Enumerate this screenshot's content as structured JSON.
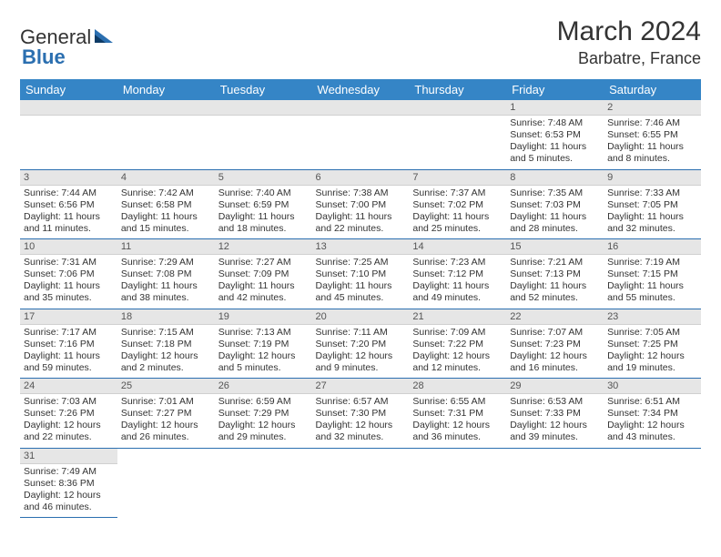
{
  "logo": {
    "part1": "General",
    "part2": "Blue"
  },
  "title": "March 2024",
  "location": "Barbatre, France",
  "colors": {
    "header_bg": "#3585c6",
    "header_text": "#ffffff",
    "daynum_bg": "#e6e6e6",
    "row_border": "#2b6fb0",
    "logo_accent": "#2b6fb0"
  },
  "weekdays": [
    "Sunday",
    "Monday",
    "Tuesday",
    "Wednesday",
    "Thursday",
    "Friday",
    "Saturday"
  ],
  "weeks": [
    [
      null,
      null,
      null,
      null,
      null,
      {
        "n": "1",
        "sr": "Sunrise: 7:48 AM",
        "ss": "Sunset: 6:53 PM",
        "dl": "Daylight: 11 hours and 5 minutes."
      },
      {
        "n": "2",
        "sr": "Sunrise: 7:46 AM",
        "ss": "Sunset: 6:55 PM",
        "dl": "Daylight: 11 hours and 8 minutes."
      }
    ],
    [
      {
        "n": "3",
        "sr": "Sunrise: 7:44 AM",
        "ss": "Sunset: 6:56 PM",
        "dl": "Daylight: 11 hours and 11 minutes."
      },
      {
        "n": "4",
        "sr": "Sunrise: 7:42 AM",
        "ss": "Sunset: 6:58 PM",
        "dl": "Daylight: 11 hours and 15 minutes."
      },
      {
        "n": "5",
        "sr": "Sunrise: 7:40 AM",
        "ss": "Sunset: 6:59 PM",
        "dl": "Daylight: 11 hours and 18 minutes."
      },
      {
        "n": "6",
        "sr": "Sunrise: 7:38 AM",
        "ss": "Sunset: 7:00 PM",
        "dl": "Daylight: 11 hours and 22 minutes."
      },
      {
        "n": "7",
        "sr": "Sunrise: 7:37 AM",
        "ss": "Sunset: 7:02 PM",
        "dl": "Daylight: 11 hours and 25 minutes."
      },
      {
        "n": "8",
        "sr": "Sunrise: 7:35 AM",
        "ss": "Sunset: 7:03 PM",
        "dl": "Daylight: 11 hours and 28 minutes."
      },
      {
        "n": "9",
        "sr": "Sunrise: 7:33 AM",
        "ss": "Sunset: 7:05 PM",
        "dl": "Daylight: 11 hours and 32 minutes."
      }
    ],
    [
      {
        "n": "10",
        "sr": "Sunrise: 7:31 AM",
        "ss": "Sunset: 7:06 PM",
        "dl": "Daylight: 11 hours and 35 minutes."
      },
      {
        "n": "11",
        "sr": "Sunrise: 7:29 AM",
        "ss": "Sunset: 7:08 PM",
        "dl": "Daylight: 11 hours and 38 minutes."
      },
      {
        "n": "12",
        "sr": "Sunrise: 7:27 AM",
        "ss": "Sunset: 7:09 PM",
        "dl": "Daylight: 11 hours and 42 minutes."
      },
      {
        "n": "13",
        "sr": "Sunrise: 7:25 AM",
        "ss": "Sunset: 7:10 PM",
        "dl": "Daylight: 11 hours and 45 minutes."
      },
      {
        "n": "14",
        "sr": "Sunrise: 7:23 AM",
        "ss": "Sunset: 7:12 PM",
        "dl": "Daylight: 11 hours and 49 minutes."
      },
      {
        "n": "15",
        "sr": "Sunrise: 7:21 AM",
        "ss": "Sunset: 7:13 PM",
        "dl": "Daylight: 11 hours and 52 minutes."
      },
      {
        "n": "16",
        "sr": "Sunrise: 7:19 AM",
        "ss": "Sunset: 7:15 PM",
        "dl": "Daylight: 11 hours and 55 minutes."
      }
    ],
    [
      {
        "n": "17",
        "sr": "Sunrise: 7:17 AM",
        "ss": "Sunset: 7:16 PM",
        "dl": "Daylight: 11 hours and 59 minutes."
      },
      {
        "n": "18",
        "sr": "Sunrise: 7:15 AM",
        "ss": "Sunset: 7:18 PM",
        "dl": "Daylight: 12 hours and 2 minutes."
      },
      {
        "n": "19",
        "sr": "Sunrise: 7:13 AM",
        "ss": "Sunset: 7:19 PM",
        "dl": "Daylight: 12 hours and 5 minutes."
      },
      {
        "n": "20",
        "sr": "Sunrise: 7:11 AM",
        "ss": "Sunset: 7:20 PM",
        "dl": "Daylight: 12 hours and 9 minutes."
      },
      {
        "n": "21",
        "sr": "Sunrise: 7:09 AM",
        "ss": "Sunset: 7:22 PM",
        "dl": "Daylight: 12 hours and 12 minutes."
      },
      {
        "n": "22",
        "sr": "Sunrise: 7:07 AM",
        "ss": "Sunset: 7:23 PM",
        "dl": "Daylight: 12 hours and 16 minutes."
      },
      {
        "n": "23",
        "sr": "Sunrise: 7:05 AM",
        "ss": "Sunset: 7:25 PM",
        "dl": "Daylight: 12 hours and 19 minutes."
      }
    ],
    [
      {
        "n": "24",
        "sr": "Sunrise: 7:03 AM",
        "ss": "Sunset: 7:26 PM",
        "dl": "Daylight: 12 hours and 22 minutes."
      },
      {
        "n": "25",
        "sr": "Sunrise: 7:01 AM",
        "ss": "Sunset: 7:27 PM",
        "dl": "Daylight: 12 hours and 26 minutes."
      },
      {
        "n": "26",
        "sr": "Sunrise: 6:59 AM",
        "ss": "Sunset: 7:29 PM",
        "dl": "Daylight: 12 hours and 29 minutes."
      },
      {
        "n": "27",
        "sr": "Sunrise: 6:57 AM",
        "ss": "Sunset: 7:30 PM",
        "dl": "Daylight: 12 hours and 32 minutes."
      },
      {
        "n": "28",
        "sr": "Sunrise: 6:55 AM",
        "ss": "Sunset: 7:31 PM",
        "dl": "Daylight: 12 hours and 36 minutes."
      },
      {
        "n": "29",
        "sr": "Sunrise: 6:53 AM",
        "ss": "Sunset: 7:33 PM",
        "dl": "Daylight: 12 hours and 39 minutes."
      },
      {
        "n": "30",
        "sr": "Sunrise: 6:51 AM",
        "ss": "Sunset: 7:34 PM",
        "dl": "Daylight: 12 hours and 43 minutes."
      }
    ],
    [
      {
        "n": "31",
        "sr": "Sunrise: 7:49 AM",
        "ss": "Sunset: 8:36 PM",
        "dl": "Daylight: 12 hours and 46 minutes."
      },
      null,
      null,
      null,
      null,
      null,
      null
    ]
  ]
}
